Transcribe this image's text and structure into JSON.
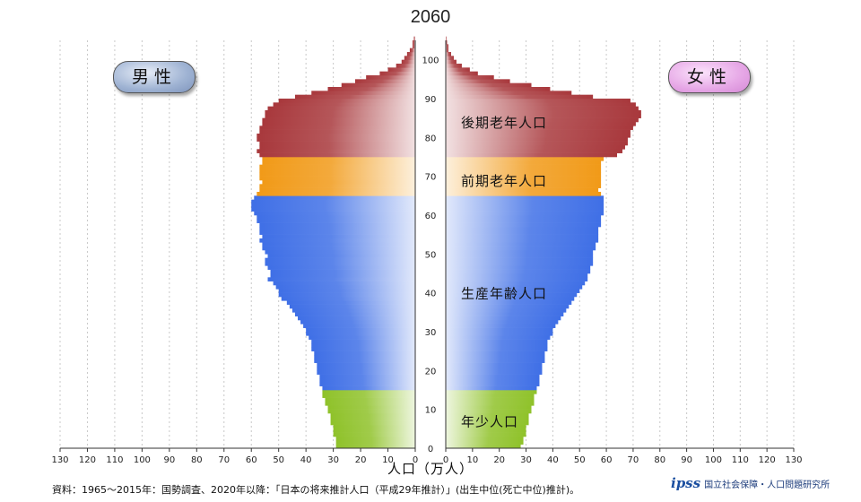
{
  "chart_data": {
    "type": "bar",
    "title": "2060",
    "xlabel": "人口（万人）",
    "male_label": "男性",
    "female_label": "女性",
    "x_ticks": [
      130,
      120,
      110,
      100,
      90,
      80,
      70,
      60,
      50,
      40,
      30,
      20,
      10,
      0
    ],
    "y_ticks": [
      0,
      10,
      20,
      30,
      40,
      50,
      60,
      70,
      80,
      90,
      100
    ],
    "xlim": [
      0,
      130
    ],
    "ylim": [
      0,
      105
    ],
    "age_groups": [
      {
        "name": "年少人口",
        "age_from": 0,
        "age_to": 14,
        "male_color": "#8fc22a",
        "female_color": "#8fc22a",
        "label_age": 7
      },
      {
        "name": "生産年齢人口",
        "age_from": 15,
        "age_to": 64,
        "male_color": "#3f6fe6",
        "female_color": "#3f6fe6",
        "label_age": 40
      },
      {
        "name": "前期老年人口",
        "age_from": 65,
        "age_to": 74,
        "male_color": "#f19a18",
        "female_color": "#f19a18",
        "label_age": 69
      },
      {
        "name": "後期老年人口",
        "age_from": 75,
        "age_to": 105,
        "male_color": "#a8383c",
        "female_color": "#a8383c",
        "label_age": 84
      }
    ],
    "male": [
      29,
      29,
      29,
      30,
      30,
      30,
      31,
      31,
      31,
      32,
      32,
      33,
      33,
      34,
      34,
      34,
      35,
      35,
      35,
      36,
      36,
      36,
      37,
      37,
      37,
      38,
      38,
      38,
      39,
      40,
      40,
      41,
      42,
      43,
      44,
      45,
      46,
      47,
      49,
      50,
      50,
      51,
      52,
      54,
      53,
      53,
      54,
      55,
      55,
      54,
      55,
      56,
      56,
      57,
      56,
      57,
      57,
      57,
      58,
      58,
      59,
      60,
      60,
      60,
      59,
      58,
      57,
      57,
      56,
      57,
      57,
      57,
      57,
      56,
      56,
      57,
      58,
      57,
      57,
      58,
      58,
      57,
      57,
      56,
      56,
      55,
      55,
      54,
      52,
      50,
      44,
      38,
      32,
      27,
      22,
      18,
      13,
      10,
      7,
      5,
      4,
      3,
      2,
      1,
      1,
      0.5
    ],
    "female": [
      28,
      29,
      29,
      30,
      30,
      30,
      31,
      31,
      31,
      32,
      32,
      33,
      33,
      33,
      34,
      34,
      35,
      35,
      35,
      36,
      36,
      36,
      37,
      37,
      37,
      38,
      38,
      38,
      39,
      40,
      40,
      41,
      42,
      43,
      44,
      45,
      46,
      47,
      48,
      49,
      50,
      51,
      52,
      53,
      53,
      54,
      54,
      55,
      55,
      55,
      55,
      56,
      56,
      57,
      57,
      57,
      57,
      58,
      58,
      58,
      59,
      59,
      59,
      59,
      59,
      58,
      57,
      58,
      58,
      58,
      58,
      58,
      58,
      58,
      59,
      64,
      66,
      67,
      68,
      68,
      69,
      69,
      70,
      71,
      72,
      73,
      73,
      72,
      71,
      69,
      55,
      47,
      39,
      32,
      24,
      18,
      12,
      9,
      6,
      4,
      3,
      2,
      1,
      1,
      0.5,
      0.3
    ]
  },
  "source_text": "資料：1965～2015年：国勢調査、2020年以降：「日本の将来推計人口（平成29年推計）」(出生中位(死亡中位)推計)。",
  "logo_text": "国立社会保障・人口問題研究所",
  "logo_mark": "ipss"
}
